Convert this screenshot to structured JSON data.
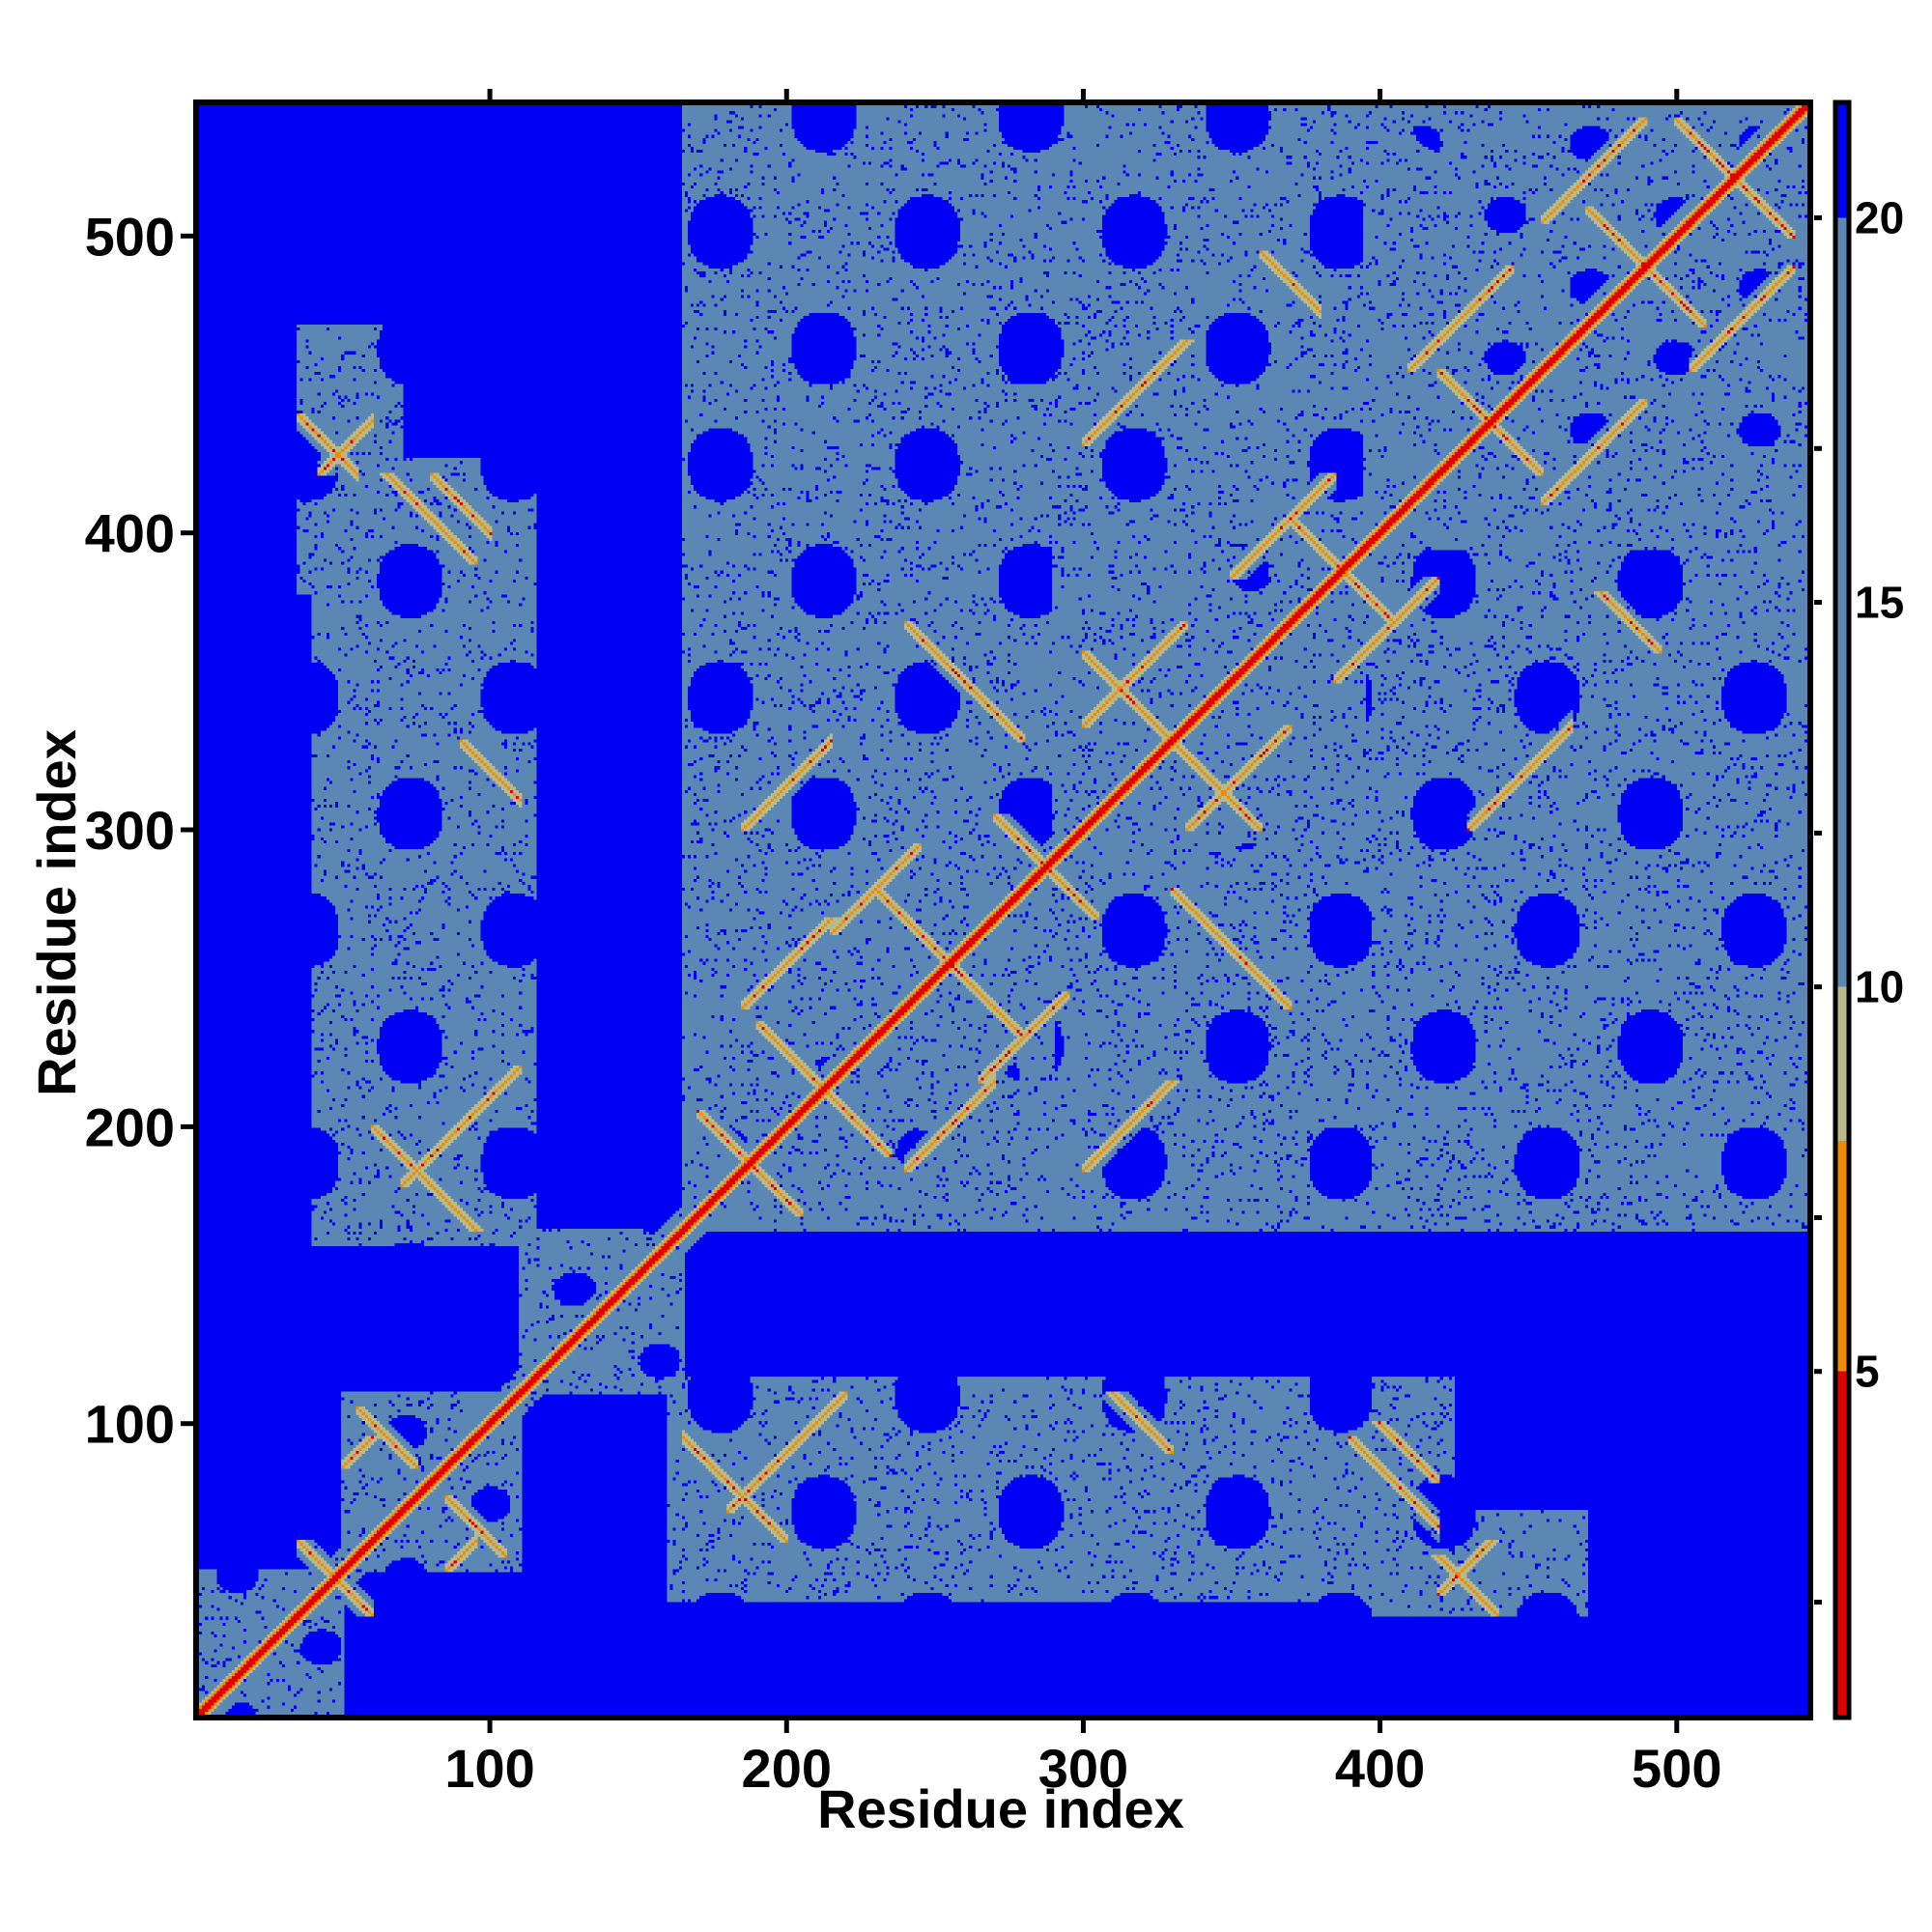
{
  "chart_data": {
    "type": "heatmap",
    "title": "",
    "xlabel": "Residue index",
    "ylabel": "Residue index",
    "n_residues": 545,
    "xlim": [
      1,
      545
    ],
    "ylim": [
      1,
      545
    ],
    "x_ticks": [
      100,
      200,
      300,
      400,
      500
    ],
    "y_ticks": [
      100,
      200,
      300,
      400,
      500
    ],
    "top_ticks": [
      100,
      200,
      300,
      400,
      500
    ],
    "colorbar": {
      "range": [
        0.5,
        21.5
      ],
      "ticks": [
        5,
        10,
        15,
        20
      ],
      "right_ticks": [
        2,
        7,
        12,
        17
      ],
      "scale": [
        {
          "to": 5,
          "color": "#e00000"
        },
        {
          "to": 8,
          "color": "#f08c00"
        },
        {
          "to": 10,
          "color": "#b9b98a"
        },
        {
          "to": 20,
          "color": "#5b87b5"
        },
        {
          "to": 21.5,
          "color": "#0000f5"
        }
      ]
    },
    "background_color": "#0000f5",
    "diagonal_color": "#e00000",
    "contact_color": "#f08c00",
    "mid_color": "#5b87b5",
    "domains": [
      {
        "start": 1,
        "end": 50
      },
      {
        "start": 50,
        "end": 110
      },
      {
        "start": 110,
        "end": 165
      },
      {
        "start": 165,
        "end": 290
      },
      {
        "start": 290,
        "end": 395
      },
      {
        "start": 395,
        "end": 545
      }
    ],
    "domain_interactions": [
      {
        "a": [
          40,
          115
        ],
        "b": [
          160,
          425
        ]
      },
      {
        "a": [
          165,
          420
        ],
        "b": [
          50,
          105
        ]
      },
      {
        "a": [
          165,
          430
        ],
        "b": [
          165,
          545
        ]
      },
      {
        "a": [
          380,
          470
        ],
        "b": [
          35,
          70
        ]
      }
    ],
    "contact_features": [
      {
        "type": "anti",
        "a": [
          40,
          60
        ],
        "b": [
          35,
          55
        ]
      },
      {
        "type": "par",
        "a": [
          50,
          65
        ],
        "b": [
          85,
          95
        ]
      },
      {
        "type": "anti",
        "a": [
          85,
          105
        ],
        "b": [
          55,
          75
        ]
      },
      {
        "type": "anti",
        "a": [
          170,
          200
        ],
        "b": [
          175,
          205
        ]
      },
      {
        "type": "anti",
        "a": [
          190,
          215
        ],
        "b": [
          205,
          235
        ]
      },
      {
        "type": "par",
        "a": [
          185,
          220
        ],
        "b": [
          240,
          270
        ]
      },
      {
        "type": "anti",
        "a": [
          230,
          260
        ],
        "b": [
          250,
          280
        ]
      },
      {
        "type": "par",
        "a": [
          215,
          245
        ],
        "b": [
          265,
          295
        ]
      },
      {
        "type": "anti",
        "a": [
          270,
          300
        ],
        "b": [
          275,
          305
        ]
      },
      {
        "type": "par",
        "a": [
          300,
          335
        ],
        "b": [
          335,
          370
        ]
      },
      {
        "type": "anti",
        "a": [
          330,
          360
        ],
        "b": [
          300,
          330
        ]
      },
      {
        "type": "par",
        "a": [
          350,
          385
        ],
        "b": [
          385,
          420
        ]
      },
      {
        "type": "anti",
        "a": [
          375,
          405
        ],
        "b": [
          370,
          400
        ]
      },
      {
        "type": "anti",
        "a": [
          420,
          450
        ],
        "b": [
          425,
          455
        ]
      },
      {
        "type": "par",
        "a": [
          410,
          445
        ],
        "b": [
          455,
          490
        ]
      },
      {
        "type": "anti",
        "a": [
          470,
          505
        ],
        "b": [
          475,
          510
        ]
      },
      {
        "type": "anti",
        "a": [
          500,
          535
        ],
        "b": [
          505,
          540
        ]
      },
      {
        "type": "par",
        "a": [
          455,
          490
        ],
        "b": [
          505,
          540
        ]
      },
      {
        "type": "anti",
        "a": [
          60,
          100
        ],
        "b": [
          165,
          200
        ]
      },
      {
        "type": "par",
        "a": [
          70,
          110
        ],
        "b": [
          180,
          220
        ]
      },
      {
        "type": "anti",
        "a": [
          90,
          110
        ],
        "b": [
          300,
          330
        ]
      },
      {
        "type": "anti",
        "a": [
          80,
          100
        ],
        "b": [
          360,
          420
        ]
      },
      {
        "type": "anti",
        "a": [
          35,
          55
        ],
        "b": [
          400,
          440
        ]
      },
      {
        "type": "par",
        "a": [
          420,
          440
        ],
        "b": [
          42,
          60
        ]
      },
      {
        "type": "anti",
        "a": [
          390,
          420
        ],
        "b": [
          60,
          95
        ]
      },
      {
        "type": "anti",
        "a": [
          360,
          380
        ],
        "b": [
          455,
          495
        ]
      },
      {
        "type": "par",
        "a": [
          430,
          465
        ],
        "b": [
          300,
          345
        ]
      },
      {
        "type": "anti",
        "a": [
          330,
          370
        ],
        "b": [
          240,
          280
        ]
      },
      {
        "type": "par",
        "a": [
          300,
          340
        ],
        "b": [
          185,
          215
        ]
      }
    ]
  }
}
